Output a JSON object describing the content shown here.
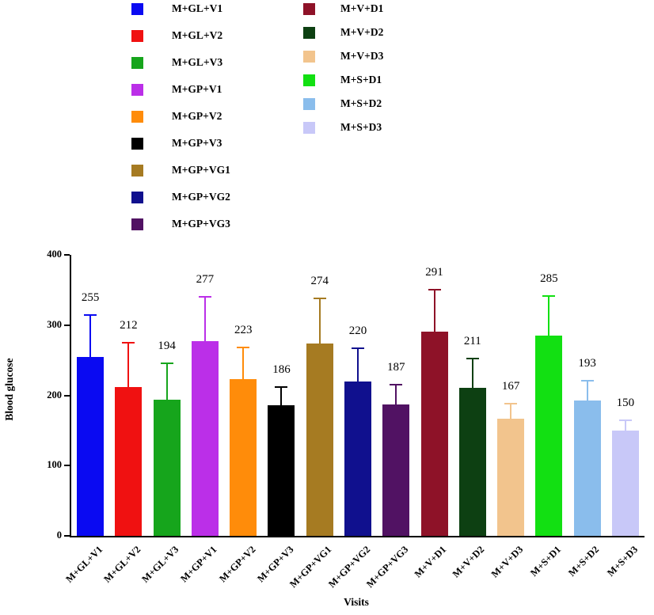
{
  "figure": {
    "background": "#ffffff"
  },
  "legend": {
    "column_split": 9
  },
  "chart_data": {
    "type": "bar",
    "title": "",
    "xlabel": "Visits",
    "ylabel": "Blood glucose",
    "ylim": [
      0,
      400
    ],
    "yticks": [
      0,
      100,
      200,
      300,
      400
    ],
    "grid": false,
    "legend_position": "top",
    "error_bars": "upper",
    "categories": [
      "M+GL+V1",
      "M+GL+V2",
      "M+GL+V3",
      "M+GP+V1",
      "M+GP+V2",
      "M+GP+V3",
      "M+GP+VG1",
      "M+GP+VG2",
      "M+GP+VG3",
      "M+V+D1",
      "M+V+D2",
      "M+V+D3",
      "M+S+D1",
      "M+S+D2",
      "M+S+D3"
    ],
    "values": [
      255,
      212,
      194,
      277,
      223,
      186,
      274,
      220,
      187,
      291,
      211,
      167,
      285,
      193,
      150
    ],
    "errors": [
      61,
      64,
      53,
      64,
      46,
      27,
      65,
      48,
      29,
      61,
      42,
      22,
      58,
      29,
      16
    ],
    "colors": [
      "#0a0af2",
      "#f01111",
      "#16a51c",
      "#bb2fe8",
      "#ff8c0a",
      "#000000",
      "#a67b22",
      "#10108e",
      "#511263",
      "#8e1228",
      "#0d4012",
      "#f2c48d",
      "#12e012",
      "#8abdec",
      "#c8c8f8"
    ]
  }
}
